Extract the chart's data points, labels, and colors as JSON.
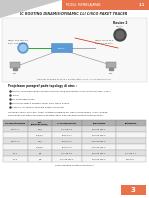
{
  "header_text": "MODUL PEMBELAJARAN",
  "header_sub": "1.1",
  "title": "IC ROUTING DINAMIS/DYNAMIC CLI CISCO PAKET TRACER",
  "bg_color": "#f0f0f0",
  "header_bg": "#e8734a",
  "header_text_color": "#ffffff",
  "title_color": "#333333",
  "page_bg": "#ffffff",
  "gray_triangle_color": "#c8c8c8",
  "table_header_bg": "#b0b0b0",
  "table_row1_bg": "#e0e0e0",
  "table_row2_bg": "#f5f5f5",
  "router2_label": "Router 2",
  "diagram_caption": "Topology Diagram Routing 2 Router Static VLAN 4 cisco Packet Tracer",
  "section_title": "Penjelasan paragraf pada topology di atas :",
  "bullets": [
    "Router yang digunakan adalah Generic yang dilengkapi 4 port Ethernet dan 1 port",
    "serial",
    "PC yang digunakan",
    "Router di-switch dengan kabel DCE Cisco 64000",
    "Satu PC list Router sebagai batas connector"
  ],
  "desc_line1": "Gunakan salah satu fitur tabel routing di bawah ini, dan tulisganggap IP dari setiap",
  "desc_line2": "perangkat dan fiturnya masing-masing agar vlan konfiguasi tidak ketimpangan.",
  "table_headers": [
    "Perangkat Jaringan",
    "Port\n(Ethernet/Serial)",
    "IP Address/subnet",
    "Subnetmask",
    "Keterangan"
  ],
  "table_rows": [
    [
      "Router 1",
      "fa0/0",
      "192.168.1.3",
      "255.255.255.0",
      ""
    ],
    [
      "",
      "s0/0/0/0",
      "10.10.10.1",
      "255.255.255.0",
      ""
    ],
    [
      "Router 2",
      "fa0/0",
      "10.10.10.2",
      "255.255.255.0",
      ""
    ],
    [
      "",
      "s0/0/0/0",
      "10.10.10.3",
      "255.255.255.0",
      ""
    ],
    [
      "PC 1",
      "N/C",
      "192.168.1.5",
      "255.255.255.0",
      "192.168.2.1"
    ],
    [
      "PC 2",
      "N/C",
      "192.168.192.3",
      "255.255.255.0",
      "2.10.10.1"
    ]
  ],
  "table_footer": "Tabel Routing Protocol Routing 2",
  "page_number": "3",
  "page_number_bg": "#e8734a",
  "line_color_gray": "#888888",
  "line_color_red": "#cc2200",
  "line_color_green": "#00aa00",
  "router_color_blue": "#5b9bd5",
  "router_color_dark": "#444444",
  "switch_color": "#5b9bd5"
}
